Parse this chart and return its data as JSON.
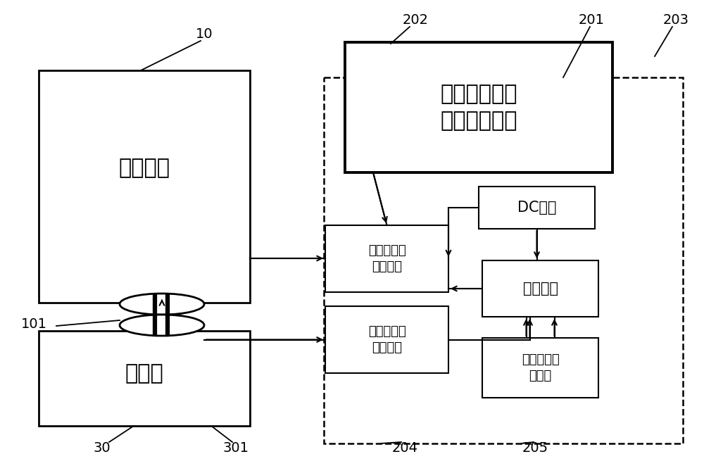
{
  "bg_color": "#ffffff",
  "line_color": "#000000",
  "label_10": "10",
  "label_101": "101",
  "label_30": "30",
  "label_301": "301",
  "label_201": "201",
  "label_202": "202",
  "label_203": "203",
  "label_204": "204",
  "label_205": "205",
  "text_peipan": "配电盘箱",
  "text_battery": "蓄电池",
  "text_device": "蓄电池在线拆\n卸和安装装置",
  "text_dc": "DC模块",
  "text_voltage": "电压检测和\n调压模块",
  "text_current": "蓄电池电流\n检测模块",
  "text_control": "控制模块",
  "text_manual": "电压手动输\n入模块",
  "figsize": [
    10.0,
    6.62
  ],
  "dpi": 100
}
